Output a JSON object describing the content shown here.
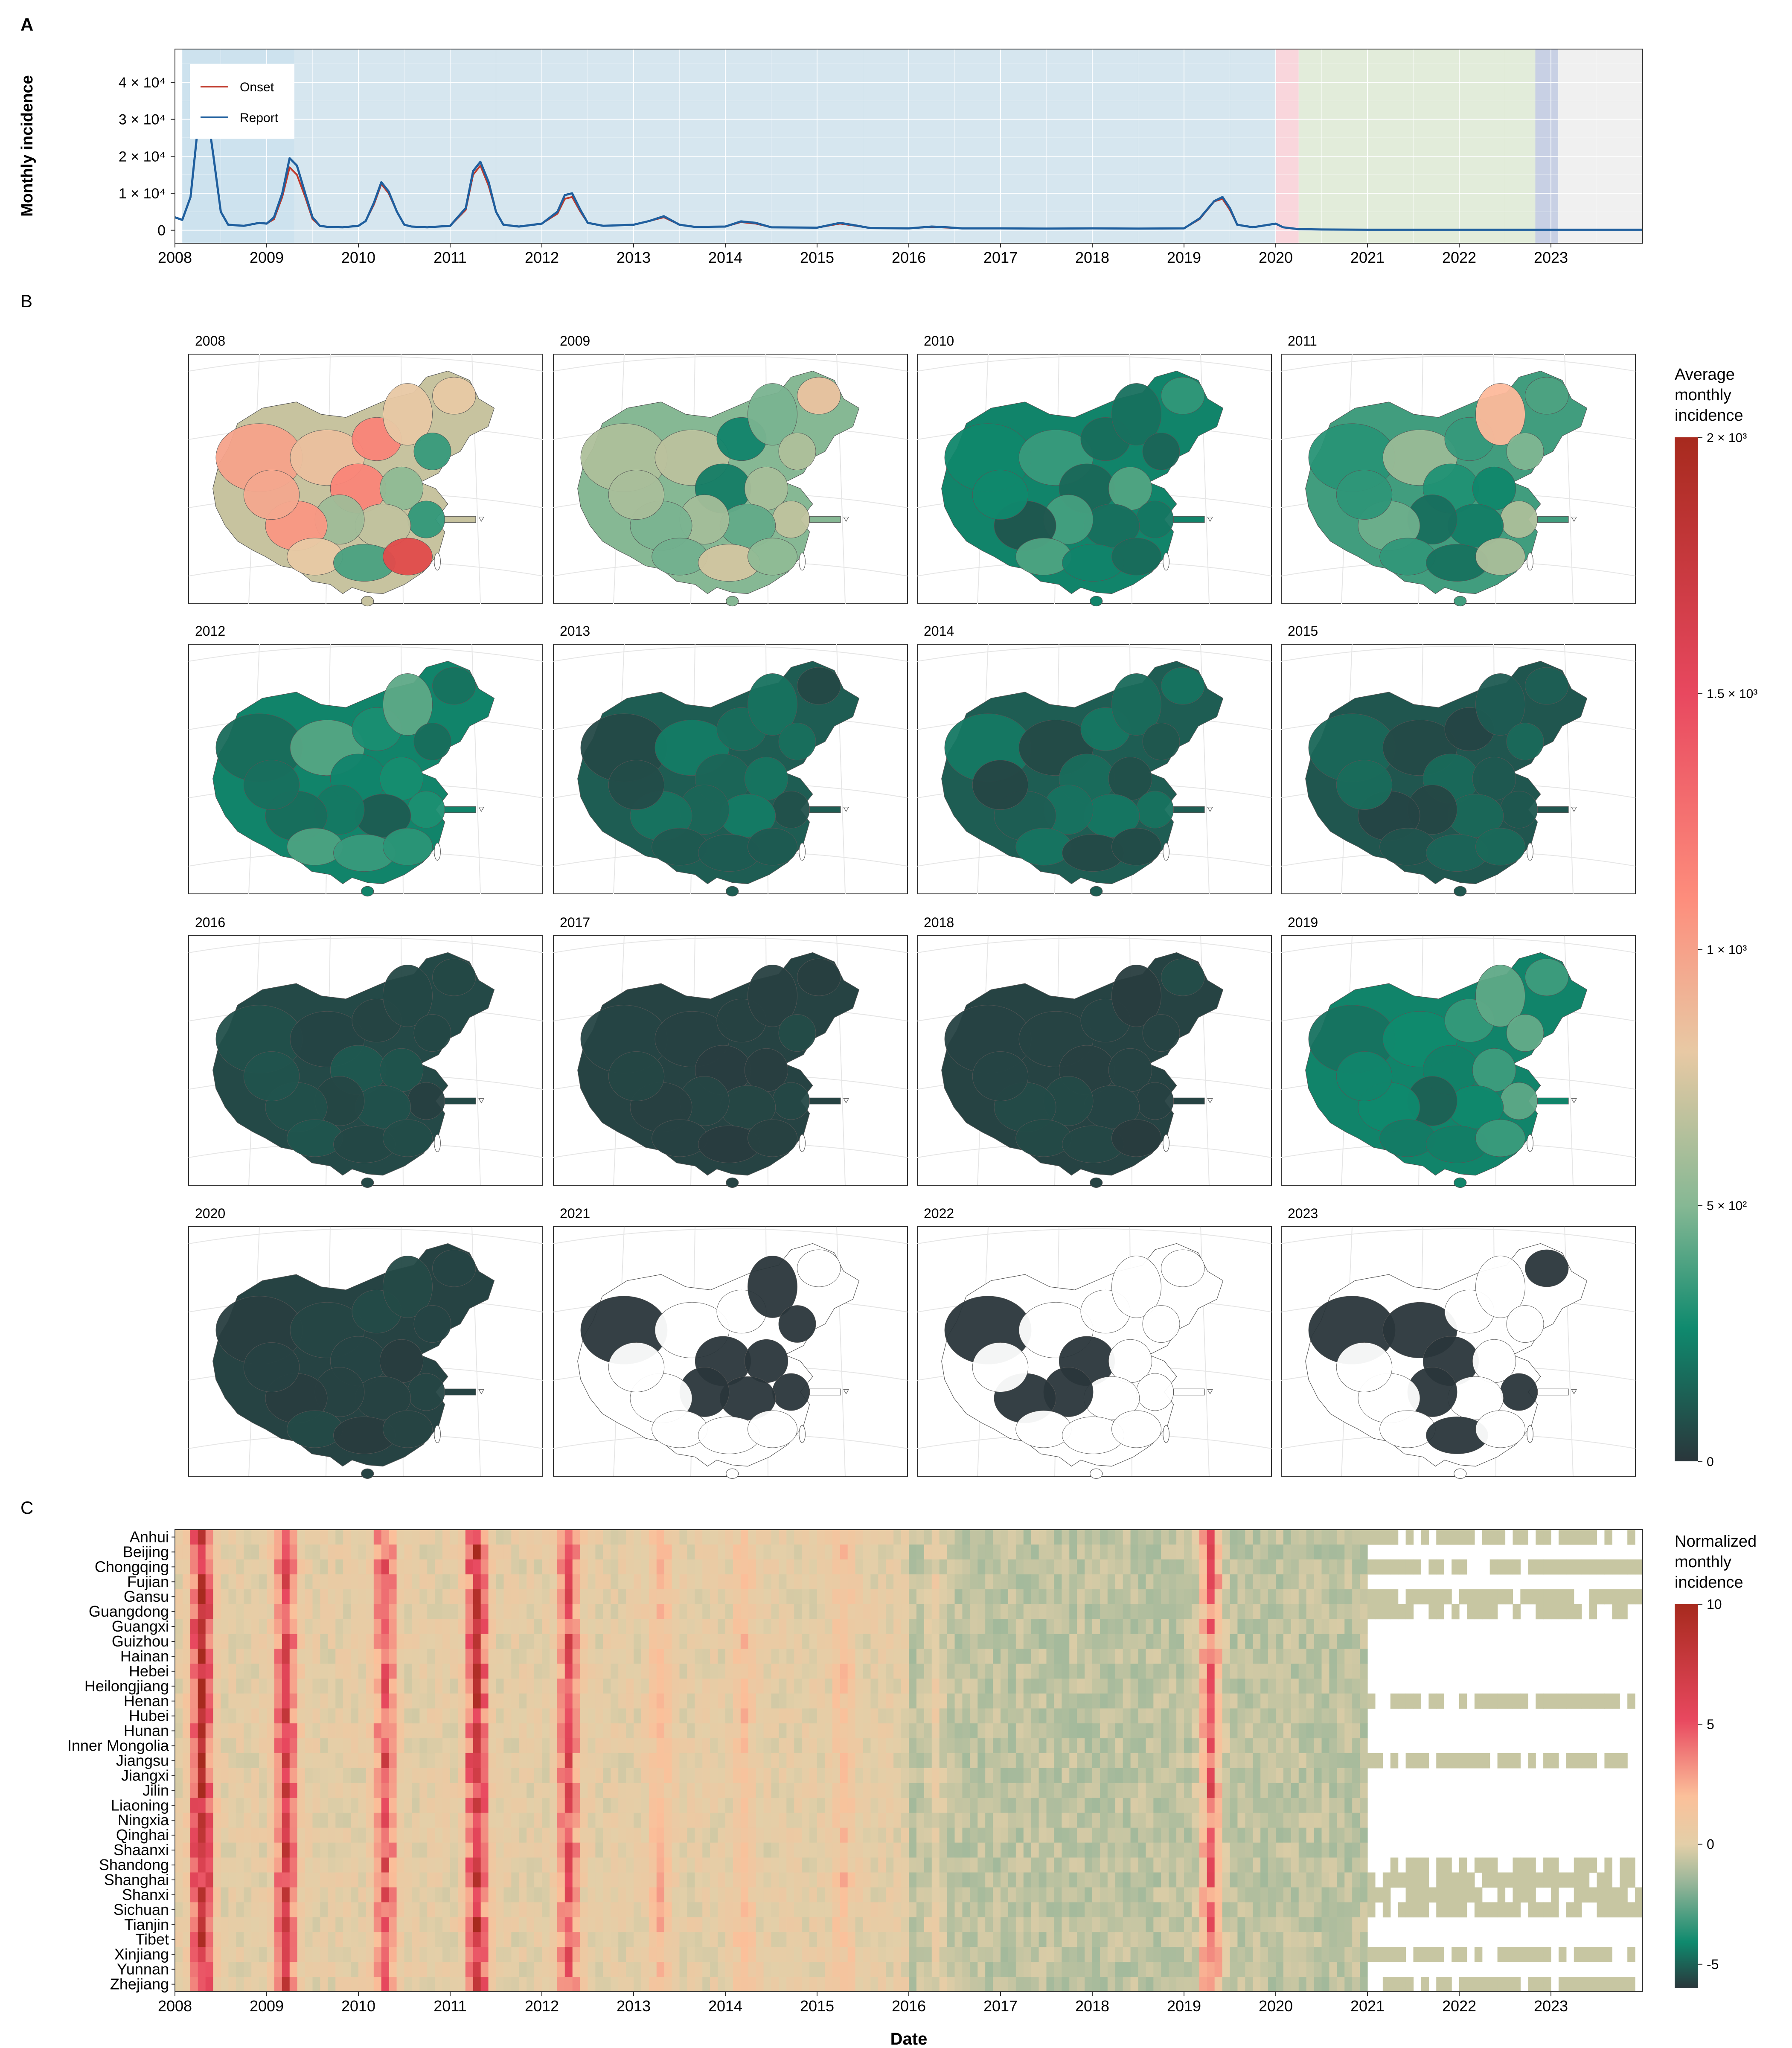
{
  "chart_data": [
    {
      "panel": "A",
      "type": "line",
      "ylabel": "Monthly incidence",
      "x_ticks": [
        "2008",
        "2009",
        "2010",
        "2011",
        "2012",
        "2013",
        "2014",
        "2015",
        "2016",
        "2017",
        "2018",
        "2019",
        "2020",
        "2021",
        "2022",
        "2023"
      ],
      "y_ticks": [
        "0",
        "1 × 10⁴",
        "2 × 10⁴",
        "3 × 10⁴",
        "4 × 10⁴"
      ],
      "xlim": [
        2008.0,
        2024.0
      ],
      "ylim": [
        -3500,
        49000
      ],
      "legend": {
        "position": "top-left",
        "entries": [
          "Onset",
          "Report"
        ]
      },
      "periods": [
        {
          "start": 2008.08,
          "end": 2009.3,
          "color": "#cde2ee"
        },
        {
          "start": 2009.3,
          "end": 2020.0,
          "color": "#d6e6ef"
        },
        {
          "start": 2020.0,
          "end": 2020.25,
          "color": "#f9d6dc"
        },
        {
          "start": 2020.25,
          "end": 2022.83,
          "color": "#e2ecda"
        },
        {
          "start": 2022.83,
          "end": 2023.08,
          "color": "#c8d0e4"
        },
        {
          "start": 2023.08,
          "end": 2024.0,
          "color": "#f0f0f0"
        }
      ],
      "series": [
        {
          "name": "Onset",
          "color": "#c0392b",
          "x": [
            2008.0,
            2008.08,
            2008.17,
            2008.25,
            2008.33,
            2008.42,
            2008.5,
            2008.58,
            2008.75,
            2008.92,
            2009.0,
            2009.08,
            2009.17,
            2009.25,
            2009.33,
            2009.42,
            2009.5,
            2009.58,
            2009.67,
            2009.83,
            2010.0,
            2010.08,
            2010.17,
            2010.25,
            2010.33,
            2010.42,
            2010.5,
            2010.58,
            2010.75,
            2011.0,
            2011.17,
            2011.25,
            2011.33,
            2011.42,
            2011.5,
            2011.58,
            2011.75,
            2012.0,
            2012.17,
            2012.25,
            2012.33,
            2012.42,
            2012.5,
            2012.67,
            2013.0,
            2013.17,
            2013.33,
            2013.5,
            2013.67,
            2014.0,
            2014.17,
            2014.33,
            2014.5,
            2015.0,
            2015.25,
            2015.42,
            2015.58,
            2016.0,
            2016.25,
            2016.42,
            2016.58,
            2017.0,
            2017.5,
            2018.0,
            2018.5,
            2019.0,
            2019.17,
            2019.33,
            2019.42,
            2019.5,
            2019.58,
            2019.75,
            2020.0,
            2020.08,
            2020.25,
            2020.5,
            2021.0,
            2022.0,
            2023.0,
            2024.0
          ],
          "y": [
            3500,
            2800,
            9000,
            28000,
            36000,
            20000,
            5000,
            1500,
            1200,
            2000,
            1800,
            3000,
            9000,
            17000,
            15000,
            9000,
            3000,
            1200,
            900,
            800,
            1200,
            2500,
            7000,
            12500,
            10000,
            5000,
            1500,
            1000,
            800,
            1200,
            5500,
            15000,
            17500,
            12000,
            5000,
            1500,
            1000,
            1800,
            4500,
            8500,
            9000,
            5000,
            2000,
            1200,
            1500,
            2500,
            3500,
            1500,
            900,
            1000,
            2200,
            1800,
            800,
            700,
            1800,
            1200,
            600,
            500,
            900,
            700,
            500,
            500,
            450,
            500,
            450,
            500,
            3000,
            7800,
            8500,
            5500,
            1500,
            800,
            1800,
            800,
            300,
            200,
            150,
            150,
            150,
            150
          ]
        },
        {
          "name": "Report",
          "color": "#1f5f9e",
          "x": [
            2008.0,
            2008.08,
            2008.17,
            2008.25,
            2008.33,
            2008.42,
            2008.5,
            2008.58,
            2008.75,
            2008.92,
            2009.0,
            2009.08,
            2009.17,
            2009.25,
            2009.33,
            2009.42,
            2009.5,
            2009.58,
            2009.67,
            2009.83,
            2010.0,
            2010.08,
            2010.17,
            2010.25,
            2010.33,
            2010.42,
            2010.5,
            2010.58,
            2010.75,
            2011.0,
            2011.17,
            2011.25,
            2011.33,
            2011.42,
            2011.5,
            2011.58,
            2011.75,
            2012.0,
            2012.17,
            2012.25,
            2012.33,
            2012.42,
            2012.5,
            2012.67,
            2013.0,
            2013.17,
            2013.33,
            2013.5,
            2013.67,
            2014.0,
            2014.17,
            2014.33,
            2014.5,
            2015.0,
            2015.25,
            2015.42,
            2015.58,
            2016.0,
            2016.25,
            2016.42,
            2016.58,
            2017.0,
            2017.5,
            2018.0,
            2018.5,
            2019.0,
            2019.17,
            2019.33,
            2019.42,
            2019.5,
            2019.58,
            2019.75,
            2020.0,
            2020.08,
            2020.25,
            2020.5,
            2021.0,
            2022.0,
            2023.0,
            2024.0
          ],
          "y": [
            3500,
            2800,
            9000,
            28000,
            36000,
            20000,
            5000,
            1500,
            1200,
            2000,
            1800,
            3500,
            10000,
            19500,
            17500,
            10000,
            3500,
            1200,
            900,
            800,
            1200,
            2500,
            7500,
            13000,
            10500,
            5000,
            1500,
            1000,
            800,
            1200,
            6000,
            16000,
            18500,
            13000,
            5000,
            1500,
            1000,
            1800,
            5000,
            9500,
            10000,
            5500,
            2000,
            1200,
            1500,
            2500,
            3800,
            1500,
            900,
            1000,
            2400,
            2000,
            800,
            700,
            2000,
            1300,
            600,
            500,
            1000,
            800,
            500,
            500,
            450,
            500,
            450,
            500,
            3200,
            7900,
            9000,
            6000,
            1500,
            800,
            1800,
            800,
            300,
            200,
            150,
            150,
            150,
            150
          ]
        }
      ]
    },
    {
      "panel": "B",
      "type": "choropleth-map-grid",
      "years": [
        "2008",
        "2009",
        "2010",
        "2011",
        "2012",
        "2013",
        "2014",
        "2015",
        "2016",
        "2017",
        "2018",
        "2019",
        "2020",
        "2021",
        "2022",
        "2023"
      ],
      "legend_title": [
        "Average",
        "monthly",
        "incidence"
      ],
      "legend_ticks": [
        "0",
        "5 × 10²",
        "1 × 10³",
        "1.5 × 10³",
        "2 × 10³"
      ],
      "legend_range": [
        0,
        2000
      ],
      "legend_colors": [
        "#2a363b",
        "#0f8a6e",
        "#86b894",
        "#e8c9a4",
        "#fd8d7c",
        "#e8485f",
        "#a72a1e"
      ],
      "national_average_intensity": [
        0.35,
        0.25,
        0.12,
        0.18,
        0.12,
        0.06,
        0.06,
        0.05,
        0.03,
        0.02,
        0.02,
        0.12,
        0.02,
        0.01,
        0.01,
        0.01
      ],
      "missing_data_years": [
        "2021",
        "2022",
        "2023"
      ]
    },
    {
      "panel": "C",
      "type": "heatmap",
      "xlabel": "Date",
      "x_ticks": [
        "2008",
        "2009",
        "2010",
        "2011",
        "2012",
        "2013",
        "2014",
        "2015",
        "2016",
        "2017",
        "2018",
        "2019",
        "2020",
        "2021",
        "2022",
        "2023"
      ],
      "provinces": [
        "Anhui",
        "Beijing",
        "Chongqing",
        "Fujian",
        "Gansu",
        "Guangdong",
        "Guangxi",
        "Guizhou",
        "Hainan",
        "Hebei",
        "Heilongjiang",
        "Henan",
        "Hubei",
        "Hunan",
        "Inner Mongolia",
        "Jiangsu",
        "Jiangxi",
        "Jilin",
        "Liaoning",
        "Ningxia",
        "Qinghai",
        "Shaanxi",
        "Shandong",
        "Shanghai",
        "Shanxi",
        "Sichuan",
        "Tianjin",
        "Tibet",
        "Xinjiang",
        "Yunnan",
        "Zhejiang"
      ],
      "legend_title": [
        "Normalized",
        "monthly",
        "incidence"
      ],
      "legend_ticks": [
        "10",
        "5",
        "0",
        "-5"
      ],
      "legend_range": [
        -6,
        10
      ],
      "epidemic_peaks": [
        {
          "year": 2008,
          "center_month": 4,
          "strength": 8
        },
        {
          "year": 2009,
          "center_month": 3,
          "strength": 6
        },
        {
          "year": 2010,
          "center_month": 4,
          "strength": 5
        },
        {
          "year": 2011,
          "center_month": 4,
          "strength": 7
        },
        {
          "year": 2012,
          "center_month": 4,
          "strength": 5
        },
        {
          "year": 2013,
          "center_month": 4,
          "strength": 2
        },
        {
          "year": 2014,
          "center_month": 3,
          "strength": 1.5
        },
        {
          "year": 2015,
          "center_month": 4,
          "strength": 1.5
        },
        {
          "year": 2016,
          "center_month": 4,
          "strength": 1
        },
        {
          "year": 2019,
          "center_month": 4,
          "strength": 5
        }
      ],
      "data_end": "2020-12",
      "sparse_after_2021": [
        "Anhui",
        "Chongqing",
        "Gansu",
        "Guangdong",
        "Henan",
        "Jiangsu",
        "Shandong",
        "Shanghai",
        "Shanxi",
        "Sichuan",
        "Xinjiang",
        "Zhejiang"
      ]
    }
  ],
  "panel_labels": {
    "a": "A",
    "b": "B",
    "c": "C"
  }
}
